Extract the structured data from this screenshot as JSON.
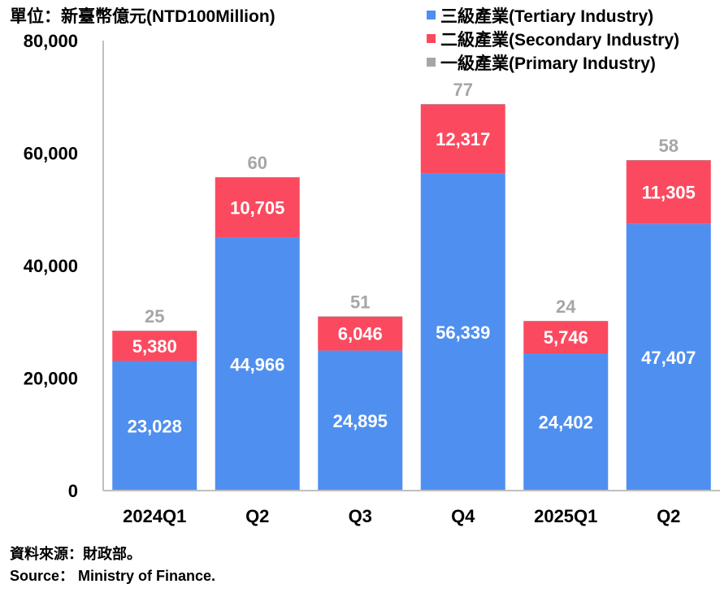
{
  "header": {
    "unit_label": "單位：新臺幣億元(NTD100Million)"
  },
  "legend": [
    {
      "label": "三級產業(Tertiary Industry)",
      "color": "#4f8ff0"
    },
    {
      "label": "二級產業(Secondary Industry)",
      "color": "#fb4a5f"
    },
    {
      "label": "一級產業(Primary Industry)",
      "color": "#a6a6a6"
    }
  ],
  "footer": {
    "source_zh": "資料來源：財政部。",
    "source_en": "Source： Ministry of Finance."
  },
  "chart_data": {
    "type": "bar",
    "stacked": true,
    "categories": [
      "2024Q1",
      "Q2",
      "Q3",
      "Q4",
      "2025Q1",
      "Q2"
    ],
    "series": [
      {
        "name": "三級產業(Tertiary Industry)",
        "color": "#4f8ff0",
        "values": [
          23028,
          44966,
          24895,
          56339,
          24402,
          47407
        ]
      },
      {
        "name": "二級產業(Secondary Industry)",
        "color": "#fb4a5f",
        "values": [
          5380,
          10705,
          6046,
          12317,
          5746,
          11305
        ]
      },
      {
        "name": "一級產業(Primary Industry)",
        "color": "#a6a6a6",
        "values": [
          25,
          60,
          51,
          77,
          24,
          58
        ]
      }
    ],
    "yticks": [
      "0",
      "20,000",
      "40,000",
      "60,000",
      "80,000"
    ],
    "ylim": [
      0,
      80000
    ],
    "grid": false,
    "legend_position": "top-right"
  }
}
